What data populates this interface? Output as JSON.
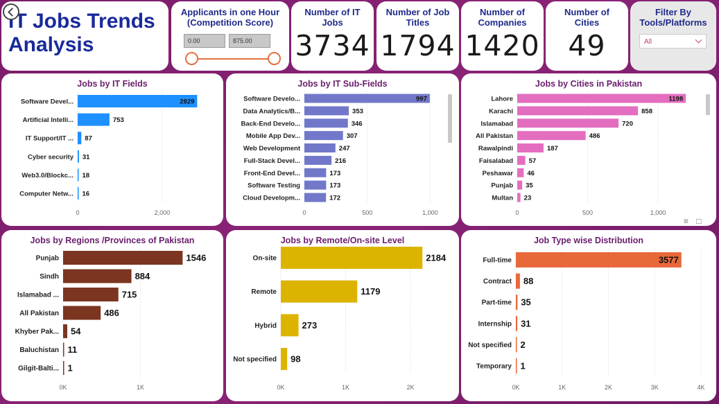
{
  "header": {
    "title_line1": "IT Jobs Trends",
    "title_line2": "Analysis"
  },
  "slicer": {
    "title_line1": "Applicants in one Hour",
    "title_line2": "(Competition Score)",
    "min_value": "0.00",
    "max_value": "875.00"
  },
  "kpis": [
    {
      "title_line1": "Number of IT",
      "title_line2": "Jobs",
      "value": "3734"
    },
    {
      "title_line1": "Number of Job",
      "title_line2": "Titles",
      "value": "1794"
    },
    {
      "title_line1": "Number of",
      "title_line2": "Companies",
      "value": "1420"
    },
    {
      "title_line1": "Number of",
      "title_line2": "Cities",
      "value": "49"
    }
  ],
  "filter": {
    "title_line1": "Filter By",
    "title_line2": "Tools/Platforms",
    "selected": "All"
  },
  "colors": {
    "fields": "#1e90ff",
    "subfields": "#7278c9",
    "cities": "#e36ec0",
    "regions": "#7b3520",
    "remote": "#dcb400",
    "jobtype": "#e8683a"
  },
  "chart_data": [
    {
      "type": "bar",
      "title": "Jobs by IT Fields",
      "categories": [
        "Software Devel...",
        "Artificial Intelli...",
        "IT Support/IT ...",
        "Cyber security",
        "Web3.0/Blockc...",
        "Computer Netw..."
      ],
      "values": [
        2829,
        753,
        87,
        31,
        18,
        16
      ],
      "ticks": [
        "0",
        "2,000"
      ],
      "tick_values": [
        0,
        2000
      ],
      "xlim": [
        0,
        3200
      ]
    },
    {
      "type": "bar",
      "title": "Jobs by IT Sub-Fields",
      "categories": [
        "Software Develo...",
        "Data Analytics/B...",
        "Back-End Develo...",
        "Mobile App Dev...",
        "Web Development",
        "Full-Stack Devel...",
        "Front-End Devel...",
        "Software Testing",
        "Cloud Developm..."
      ],
      "values": [
        997,
        353,
        346,
        307,
        247,
        216,
        173,
        173,
        172
      ],
      "ticks": [
        "0",
        "500",
        "1,000"
      ],
      "tick_values": [
        0,
        500,
        1000
      ],
      "xlim": [
        0,
        1130
      ]
    },
    {
      "type": "bar",
      "title": "Jobs by Cities in Pakistan",
      "categories": [
        "Lahore",
        "Karachi",
        "Islamabad",
        "All Pakistan",
        "Rawalpindi",
        "Faisalabad",
        "Peshawar",
        "Punjab",
        "Multan"
      ],
      "values": [
        1198,
        858,
        720,
        486,
        187,
        57,
        46,
        35,
        23
      ],
      "ticks": [
        "0",
        "500",
        "1,000"
      ],
      "tick_values": [
        0,
        500,
        1000
      ],
      "xlim": [
        0,
        1350
      ]
    },
    {
      "type": "bar",
      "title": "Jobs by Regions /Provinces of Pakistan",
      "categories": [
        "Punjab",
        "Sindh",
        "Islamabad ...",
        "All Pakistan",
        "Khyber Pak...",
        "Baluchistan",
        "Gilgit-Balti..."
      ],
      "values": [
        1546,
        884,
        715,
        486,
        54,
        11,
        1
      ],
      "ticks": [
        "0K",
        "1K"
      ],
      "tick_values": [
        0,
        1000
      ],
      "xlim": [
        0,
        2000
      ]
    },
    {
      "type": "bar",
      "title": "Jobs by Remote/On-site Level",
      "categories": [
        "On-site",
        "Remote",
        "Hybrid",
        "Not specified"
      ],
      "values": [
        2184,
        1179,
        273,
        98
      ],
      "ticks": [
        "0K",
        "1K",
        "2K"
      ],
      "tick_values": [
        0,
        1000,
        2000
      ],
      "xlim": [
        0,
        2630
      ]
    },
    {
      "type": "bar",
      "title": "Job Type wise Distribution",
      "categories": [
        "Full-time",
        "Contract",
        "Part-time",
        "Internship",
        "Not specified",
        "Temporary"
      ],
      "values": [
        3577,
        88,
        35,
        31,
        2,
        1
      ],
      "ticks": [
        "0K",
        "1K",
        "2K",
        "3K",
        "4K"
      ],
      "tick_values": [
        0,
        1000,
        2000,
        3000,
        4000
      ],
      "xlim": [
        0,
        4000
      ]
    }
  ]
}
